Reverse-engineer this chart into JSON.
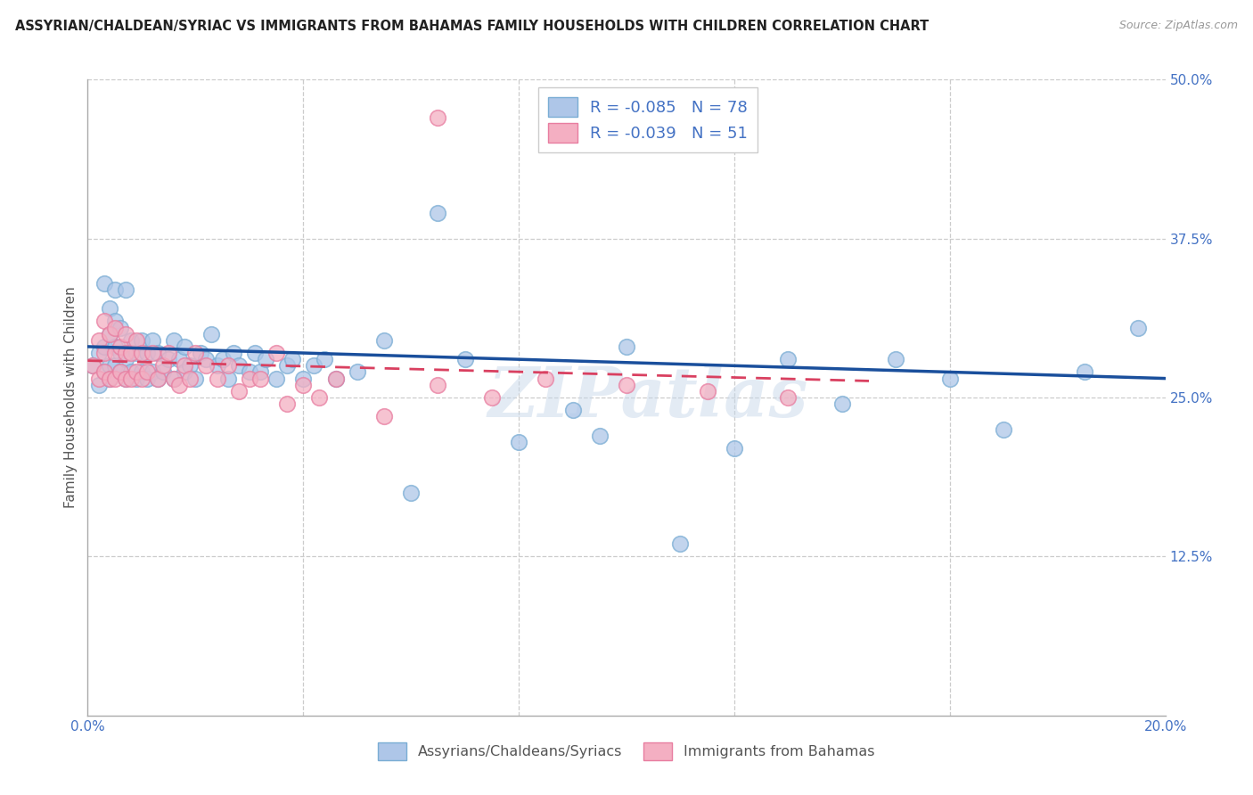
{
  "title": "ASSYRIAN/CHALDEAN/SYRIAC VS IMMIGRANTS FROM BAHAMAS FAMILY HOUSEHOLDS WITH CHILDREN CORRELATION CHART",
  "source": "Source: ZipAtlas.com",
  "ylabel": "Family Households with Children",
  "xlim": [
    0.0,
    0.2
  ],
  "ylim": [
    0.0,
    0.5
  ],
  "xticks": [
    0.0,
    0.04,
    0.08,
    0.12,
    0.16,
    0.2
  ],
  "xticklabels": [
    "0.0%",
    "",
    "",
    "",
    "",
    "20.0%"
  ],
  "yticks": [
    0.0,
    0.125,
    0.25,
    0.375,
    0.5
  ],
  "yticklabels": [
    "",
    "12.5%",
    "25.0%",
    "37.5%",
    "50.0%"
  ],
  "blue_R": -0.085,
  "blue_N": 78,
  "pink_R": -0.039,
  "pink_N": 51,
  "blue_color": "#aec6e8",
  "pink_color": "#f4afc2",
  "blue_edge_color": "#7aadd4",
  "pink_edge_color": "#e87da0",
  "blue_line_color": "#1a4f9c",
  "pink_line_color": "#d94060",
  "legend_label_blue": "Assyrians/Chaldeans/Syriacs",
  "legend_label_pink": "Immigrants from Bahamas",
  "watermark": "ZIPatlas",
  "blue_scatter_x": [
    0.001,
    0.002,
    0.002,
    0.003,
    0.003,
    0.003,
    0.004,
    0.004,
    0.004,
    0.004,
    0.005,
    0.005,
    0.005,
    0.005,
    0.006,
    0.006,
    0.006,
    0.007,
    0.007,
    0.007,
    0.008,
    0.008,
    0.009,
    0.009,
    0.01,
    0.01,
    0.011,
    0.011,
    0.012,
    0.012,
    0.013,
    0.013,
    0.014,
    0.015,
    0.016,
    0.016,
    0.017,
    0.018,
    0.018,
    0.019,
    0.02,
    0.021,
    0.022,
    0.023,
    0.024,
    0.025,
    0.026,
    0.027,
    0.028,
    0.03,
    0.031,
    0.032,
    0.033,
    0.035,
    0.037,
    0.038,
    0.04,
    0.042,
    0.044,
    0.046,
    0.05,
    0.055,
    0.06,
    0.065,
    0.07,
    0.08,
    0.09,
    0.095,
    0.1,
    0.11,
    0.12,
    0.13,
    0.14,
    0.15,
    0.16,
    0.17,
    0.185,
    0.195
  ],
  "blue_scatter_y": [
    0.275,
    0.26,
    0.285,
    0.27,
    0.29,
    0.34,
    0.275,
    0.265,
    0.3,
    0.32,
    0.275,
    0.29,
    0.31,
    0.335,
    0.27,
    0.285,
    0.305,
    0.265,
    0.28,
    0.335,
    0.27,
    0.295,
    0.265,
    0.285,
    0.27,
    0.295,
    0.265,
    0.285,
    0.27,
    0.295,
    0.265,
    0.285,
    0.27,
    0.28,
    0.265,
    0.295,
    0.28,
    0.27,
    0.29,
    0.275,
    0.265,
    0.285,
    0.28,
    0.3,
    0.275,
    0.28,
    0.265,
    0.285,
    0.275,
    0.27,
    0.285,
    0.27,
    0.28,
    0.265,
    0.275,
    0.28,
    0.265,
    0.275,
    0.28,
    0.265,
    0.27,
    0.295,
    0.175,
    0.395,
    0.28,
    0.215,
    0.24,
    0.22,
    0.29,
    0.135,
    0.21,
    0.28,
    0.245,
    0.28,
    0.265,
    0.225,
    0.27,
    0.305
  ],
  "pink_scatter_x": [
    0.001,
    0.002,
    0.002,
    0.003,
    0.003,
    0.003,
    0.004,
    0.004,
    0.005,
    0.005,
    0.005,
    0.006,
    0.006,
    0.007,
    0.007,
    0.007,
    0.008,
    0.008,
    0.009,
    0.009,
    0.01,
    0.01,
    0.011,
    0.012,
    0.013,
    0.014,
    0.015,
    0.016,
    0.017,
    0.018,
    0.019,
    0.02,
    0.022,
    0.024,
    0.026,
    0.028,
    0.03,
    0.032,
    0.035,
    0.037,
    0.04,
    0.043,
    0.046,
    0.055,
    0.065,
    0.075,
    0.085,
    0.1,
    0.115,
    0.13,
    0.065
  ],
  "pink_scatter_y": [
    0.275,
    0.265,
    0.295,
    0.27,
    0.285,
    0.31,
    0.265,
    0.3,
    0.265,
    0.285,
    0.305,
    0.27,
    0.29,
    0.265,
    0.285,
    0.3,
    0.265,
    0.285,
    0.27,
    0.295,
    0.265,
    0.285,
    0.27,
    0.285,
    0.265,
    0.275,
    0.285,
    0.265,
    0.26,
    0.275,
    0.265,
    0.285,
    0.275,
    0.265,
    0.275,
    0.255,
    0.265,
    0.265,
    0.285,
    0.245,
    0.26,
    0.25,
    0.265,
    0.235,
    0.26,
    0.25,
    0.265,
    0.26,
    0.255,
    0.25,
    0.47
  ],
  "blue_trend_x": [
    0.0,
    0.2
  ],
  "blue_trend_y": [
    0.29,
    0.265
  ],
  "pink_trend_x": [
    0.0,
    0.145
  ],
  "pink_trend_y": [
    0.279,
    0.263
  ],
  "grid_lines": [
    0.125,
    0.25,
    0.375,
    0.5
  ],
  "vertical_gridlines": [
    0.04,
    0.08,
    0.12,
    0.16
  ]
}
